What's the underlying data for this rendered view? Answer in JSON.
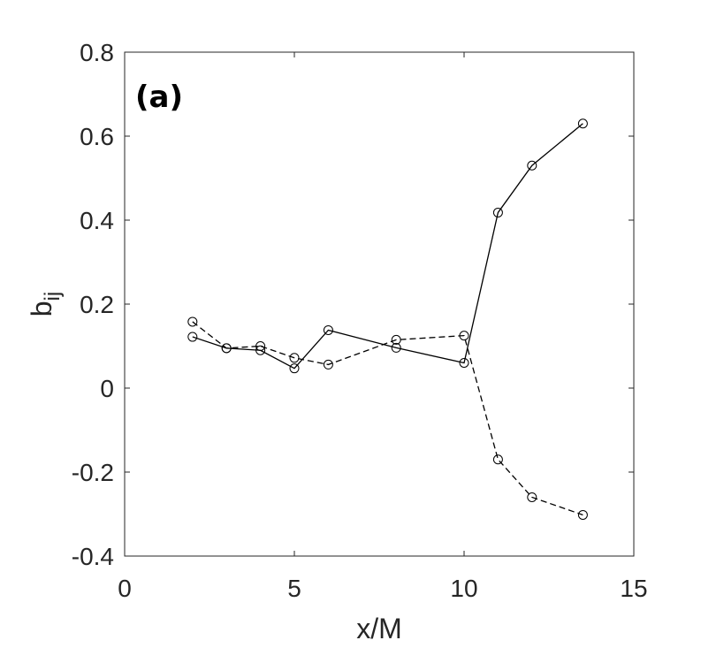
{
  "chart_data": {
    "type": "line",
    "panel_label": "(a)",
    "xlabel": "x/M",
    "ylabel": {
      "base": "b",
      "subscript": "ij"
    },
    "xlim": [
      0,
      15
    ],
    "ylim": [
      -0.4,
      0.8
    ],
    "xticks": [
      "0",
      "5",
      "10",
      "15"
    ],
    "yticks": [
      "-0.4",
      "-0.2",
      "0",
      "0.2",
      "0.4",
      "0.6",
      "0.8"
    ],
    "grid": false,
    "series": [
      {
        "style": "solid",
        "marker": "circle",
        "color": "#000000",
        "x": [
          2,
          3,
          4,
          5,
          6,
          8,
          10,
          11,
          12,
          13.5
        ],
        "y": [
          0.122,
          0.095,
          0.09,
          0.047,
          0.138,
          0.096,
          0.06,
          0.418,
          0.53,
          0.63
        ]
      },
      {
        "style": "dashed",
        "marker": "circle",
        "color": "#000000",
        "x": [
          2,
          3,
          4,
          5,
          6,
          8,
          10,
          11,
          12,
          13.5
        ],
        "y": [
          0.158,
          0.095,
          0.1,
          0.072,
          0.056,
          0.115,
          0.125,
          -0.17,
          -0.26,
          -0.302
        ]
      }
    ]
  }
}
